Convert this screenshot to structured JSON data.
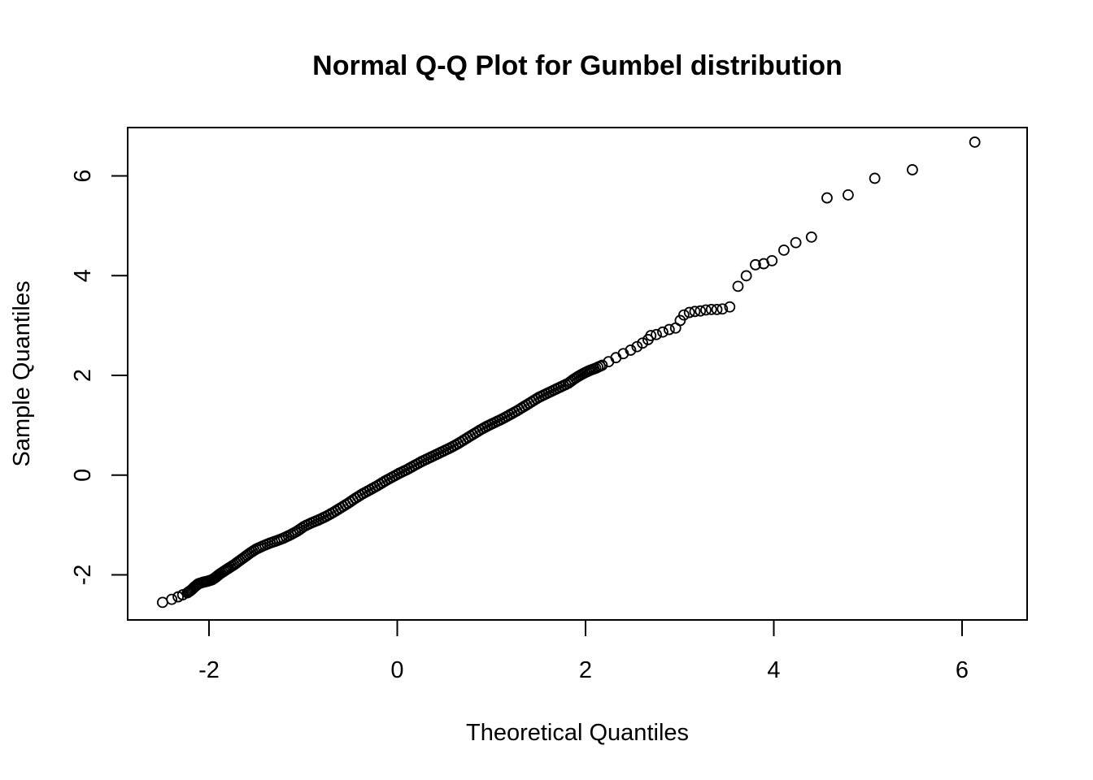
{
  "chart_data": {
    "type": "scatter",
    "title": "Normal Q-Q Plot for Gumbel distribution",
    "xlabel": "Theoretical Quantiles",
    "ylabel": "Sample Quantiles",
    "xlim": [
      -2.9,
      6.9
    ],
    "ylim": [
      -2.9,
      6.9
    ],
    "x_ticks": [
      -2,
      0,
      2,
      4,
      6
    ],
    "y_ticks": [
      -2,
      0,
      2,
      4,
      6
    ],
    "x_tick_labels": [
      "-2",
      "0",
      "2",
      "4",
      "6"
    ],
    "y_tick_labels": [
      "-2",
      "0",
      "2",
      "4",
      "6"
    ],
    "grid": false,
    "legend": "none",
    "marker": "open-circle",
    "point_color": "#000000",
    "series": [
      {
        "points": [
          [
            -2.52,
            -2.55
          ],
          [
            -2.42,
            -2.49
          ],
          [
            -2.35,
            -2.44
          ],
          [
            -2.3,
            -2.4
          ],
          [
            -2.25,
            -2.36
          ],
          [
            -2.21,
            -2.31
          ],
          [
            -2.17,
            -2.24
          ],
          [
            -2.13,
            -2.18
          ],
          [
            -2.08,
            -2.15
          ],
          [
            -2.03,
            -2.13
          ],
          [
            -1.98,
            -2.1
          ],
          [
            -1.94,
            -2.05
          ],
          [
            -1.9,
            -1.99
          ],
          [
            -1.85,
            -1.93
          ],
          [
            -1.8,
            -1.87
          ],
          [
            -1.74,
            -1.8
          ],
          [
            -1.68,
            -1.72
          ],
          [
            -1.62,
            -1.64
          ],
          [
            -1.56,
            -1.56
          ],
          [
            -1.5,
            -1.49
          ],
          [
            -1.43,
            -1.43
          ],
          [
            -1.35,
            -1.37
          ],
          [
            -1.27,
            -1.32
          ],
          [
            -1.2,
            -1.27
          ],
          [
            -1.12,
            -1.2
          ],
          [
            -1.05,
            -1.13
          ],
          [
            -0.98,
            -1.04
          ],
          [
            -0.9,
            -0.97
          ],
          [
            -0.82,
            -0.91
          ],
          [
            -0.74,
            -0.84
          ],
          [
            -0.66,
            -0.76
          ],
          [
            -0.58,
            -0.67
          ],
          [
            -0.5,
            -0.58
          ],
          [
            -0.42,
            -0.48
          ],
          [
            -0.34,
            -0.39
          ],
          [
            -0.26,
            -0.31
          ],
          [
            -0.18,
            -0.23
          ],
          [
            -0.1,
            -0.14
          ],
          [
            -0.02,
            -0.06
          ],
          [
            0.06,
            0.02
          ],
          [
            0.14,
            0.09
          ],
          [
            0.22,
            0.17
          ],
          [
            0.3,
            0.25
          ],
          [
            0.38,
            0.32
          ],
          [
            0.46,
            0.39
          ],
          [
            0.54,
            0.46
          ],
          [
            0.62,
            0.53
          ],
          [
            0.7,
            0.61
          ],
          [
            0.78,
            0.7
          ],
          [
            0.86,
            0.79
          ],
          [
            0.94,
            0.88
          ],
          [
            1.02,
            0.96
          ],
          [
            1.1,
            1.03
          ],
          [
            1.18,
            1.1
          ],
          [
            1.26,
            1.18
          ],
          [
            1.34,
            1.26
          ],
          [
            1.42,
            1.35
          ],
          [
            1.5,
            1.44
          ],
          [
            1.58,
            1.53
          ],
          [
            1.66,
            1.6
          ],
          [
            1.74,
            1.67
          ],
          [
            1.82,
            1.74
          ],
          [
            1.9,
            1.81
          ],
          [
            1.96,
            1.89
          ],
          [
            2.02,
            1.96
          ],
          [
            2.08,
            2.02
          ],
          [
            2.14,
            2.07
          ],
          [
            2.2,
            2.11
          ],
          [
            2.27,
            2.17
          ],
          [
            2.34,
            2.24
          ],
          [
            2.42,
            2.32
          ],
          [
            2.5,
            2.4
          ],
          [
            2.58,
            2.47
          ],
          [
            2.65,
            2.54
          ],
          [
            2.71,
            2.61
          ],
          [
            2.77,
            2.68
          ],
          [
            2.8,
            2.76
          ],
          [
            2.86,
            2.78
          ],
          [
            2.93,
            2.83
          ],
          [
            3.0,
            2.88
          ],
          [
            3.07,
            2.91
          ],
          [
            3.12,
            3.06
          ],
          [
            3.16,
            3.17
          ],
          [
            3.22,
            3.22
          ],
          [
            3.28,
            3.24
          ],
          [
            3.34,
            3.25
          ],
          [
            3.4,
            3.27
          ],
          [
            3.46,
            3.28
          ],
          [
            3.52,
            3.28
          ],
          [
            3.58,
            3.29
          ],
          [
            3.66,
            3.33
          ],
          [
            3.75,
            3.74
          ],
          [
            3.84,
            3.95
          ],
          [
            3.94,
            4.17
          ],
          [
            4.03,
            4.19
          ],
          [
            4.12,
            4.25
          ],
          [
            4.25,
            4.46
          ],
          [
            4.38,
            4.61
          ],
          [
            4.55,
            4.72
          ],
          [
            4.72,
            5.5
          ],
          [
            4.95,
            5.56
          ],
          [
            5.24,
            5.89
          ],
          [
            5.65,
            6.06
          ],
          [
            6.33,
            6.61
          ]
        ]
      }
    ]
  }
}
